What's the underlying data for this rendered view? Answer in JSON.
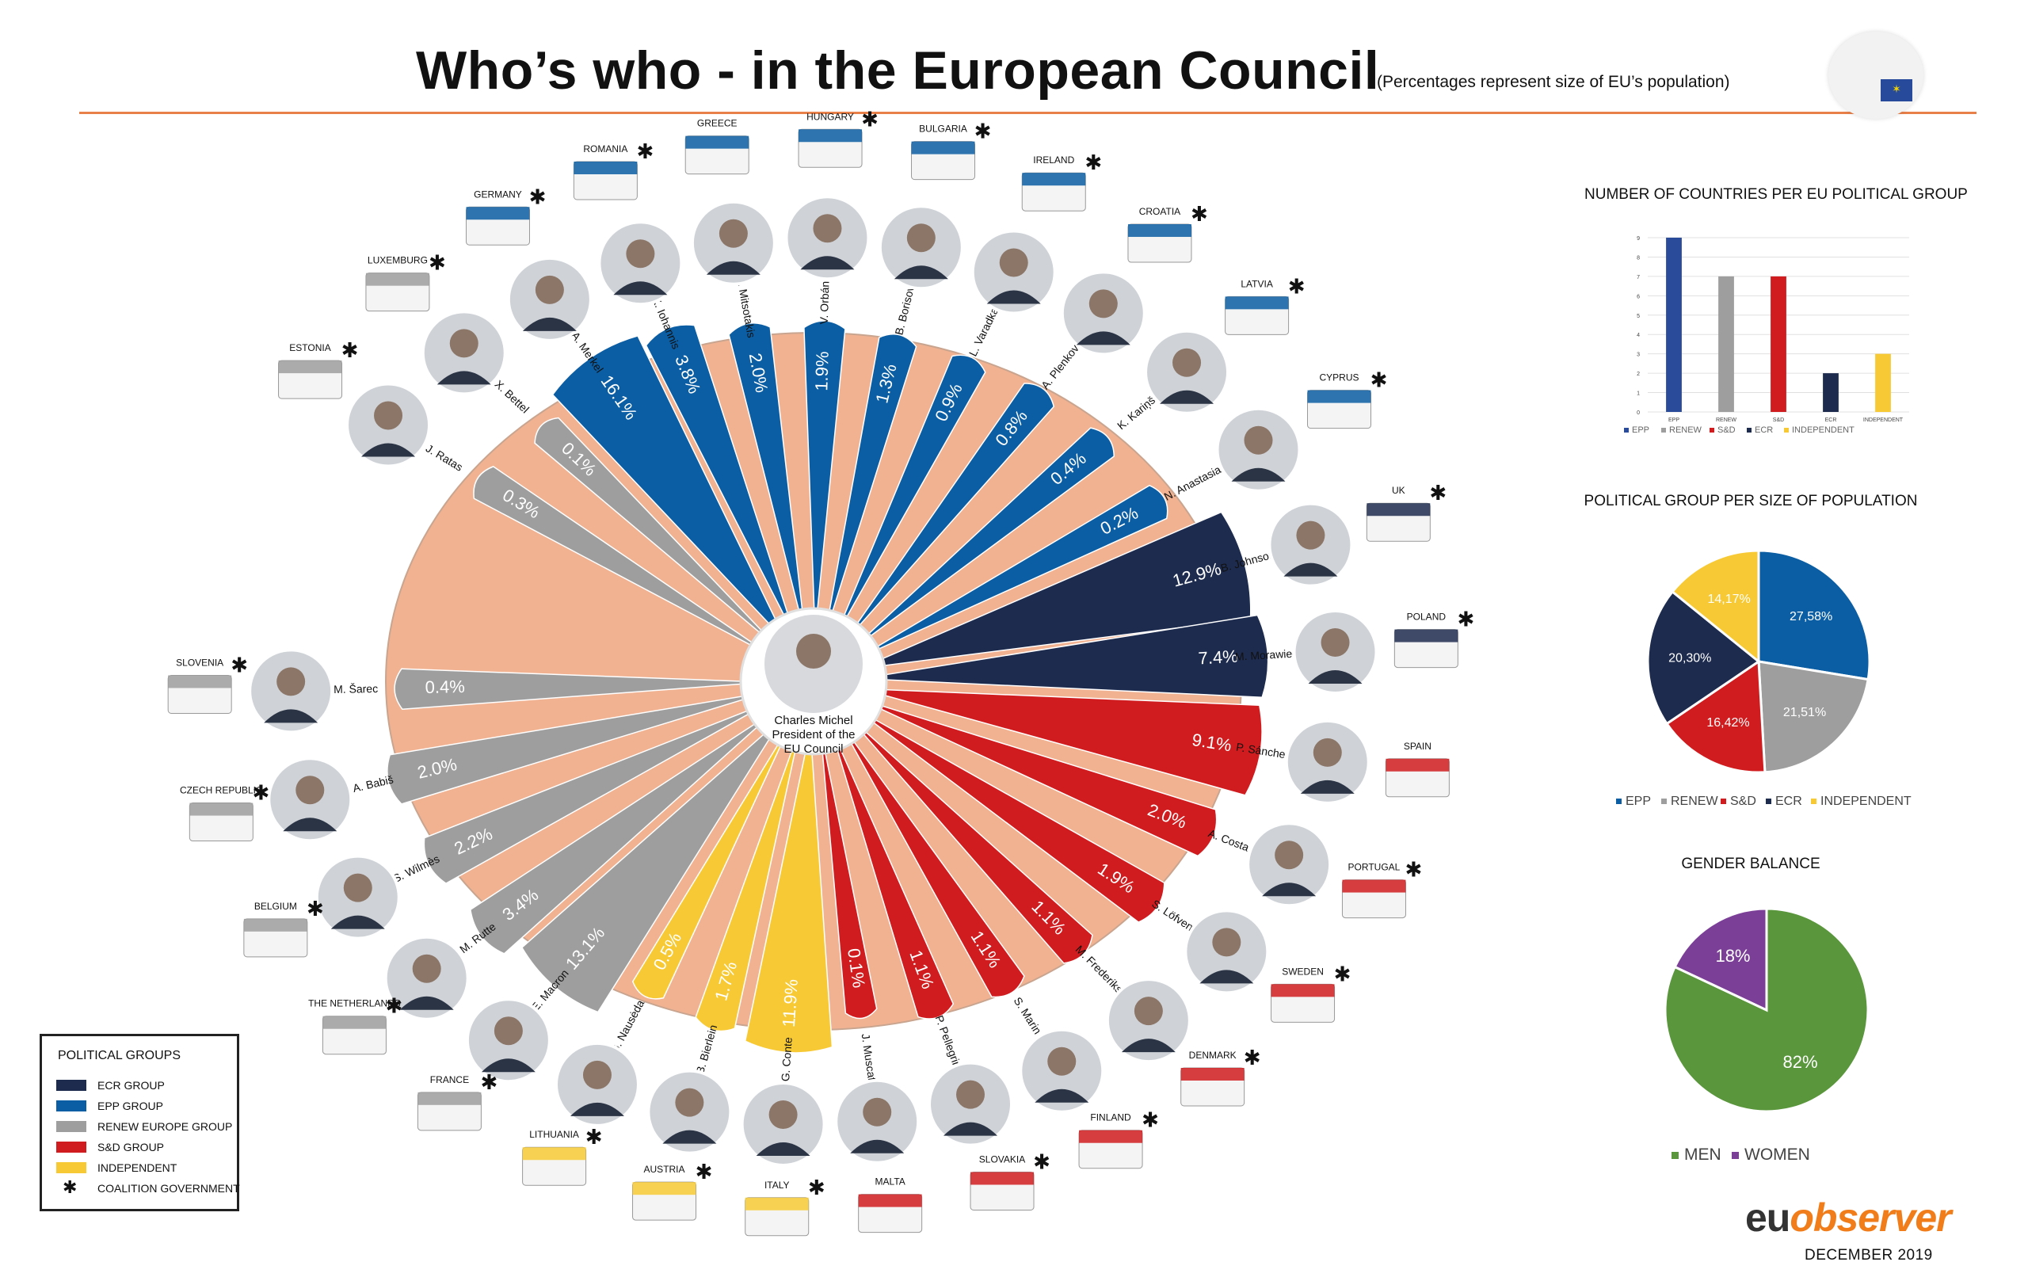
{
  "header": {
    "title": "Who’s who - in the European Council",
    "subtitle": "(Percentages represent size of EU’s population)"
  },
  "center": {
    "line1": "Charles Michel",
    "line2": "President of the",
    "line3": "EU Council"
  },
  "colors": {
    "ECR": "#1d2b4f",
    "EPP": "#0b5ea3",
    "RENEW": "#9e9e9e",
    "SD": "#d01c1f",
    "IND": "#f7ca35",
    "wheel": "#f1b292",
    "accent": "#e8804a"
  },
  "chart_data": [
    {
      "type": "bar",
      "subtype": "radial",
      "title": "Who’s who - in the European Council",
      "subtitle": "(Percentages represent size of EU’s population)",
      "series": [
        {
          "country": "ESTONIA",
          "leader": "J. Ratas",
          "group": "RENEW",
          "value": 0.3,
          "label": "0.3%",
          "coalition": true,
          "flag": "estonia-flag"
        },
        {
          "country": "LUXEMBURG",
          "leader": "X. Bettel",
          "group": "RENEW",
          "value": 0.1,
          "label": "0.1%",
          "coalition": true,
          "flag": "luxembourg-flag"
        },
        {
          "country": "GERMANY",
          "leader": "A. Merkel",
          "group": "EPP",
          "value": 16.1,
          "label": "16.1%",
          "coalition": true,
          "flag": "germany-flag"
        },
        {
          "country": "ROMANIA",
          "leader": "K. Iohannis",
          "group": "EPP",
          "value": 3.8,
          "label": "3.8%",
          "coalition": true,
          "flag": "romania-flag"
        },
        {
          "country": "GREECE",
          "leader": "K. Mitsotakis",
          "group": "EPP",
          "value": 2.0,
          "label": "2.0%",
          "coalition": false,
          "flag": "greece-flag"
        },
        {
          "country": "HUNGARY",
          "leader": "V. Orbán",
          "group": "EPP",
          "value": 1.9,
          "label": "1.9%",
          "coalition": true,
          "flag": "hungary-flag"
        },
        {
          "country": "BULGARIA",
          "leader": "B. Borisov",
          "group": "EPP",
          "value": 1.3,
          "label": "1.3%",
          "coalition": true,
          "flag": "bulgaria-flag"
        },
        {
          "country": "IRELAND",
          "leader": "L. Varadkar",
          "group": "EPP",
          "value": 0.9,
          "label": "0.9%",
          "coalition": true,
          "flag": "ireland-flag"
        },
        {
          "country": "CROATIA",
          "leader": "A. Plenković",
          "group": "EPP",
          "value": 0.8,
          "label": "0.8%",
          "coalition": true,
          "flag": "croatia-flag"
        },
        {
          "country": "LATVIA",
          "leader": "K. Kariņš",
          "group": "EPP",
          "value": 0.4,
          "label": "0.4%",
          "coalition": true,
          "flag": "latvia-flag"
        },
        {
          "country": "CYPRUS",
          "leader": "N. Anastasiades",
          "group": "EPP",
          "value": 0.2,
          "label": "0.2%",
          "coalition": true,
          "flag": "cyprus-flag"
        },
        {
          "country": "UK",
          "leader": "B. Johnson",
          "group": "ECR",
          "value": 12.9,
          "label": "12.9%",
          "coalition": true,
          "flag": "uk-flag"
        },
        {
          "country": "POLAND",
          "leader": "M. Morawiecki",
          "group": "ECR",
          "value": 7.4,
          "label": "7.4%",
          "coalition": true,
          "flag": "poland-flag"
        },
        {
          "country": "SPAIN",
          "leader": "P. Sánchez",
          "group": "SD",
          "value": 9.1,
          "label": "9.1%",
          "coalition": false,
          "flag": "spain-flag"
        },
        {
          "country": "PORTUGAL",
          "leader": "A. Costa",
          "group": "SD",
          "value": 2.0,
          "label": "2.0%",
          "coalition": true,
          "flag": "portugal-flag"
        },
        {
          "country": "SWEDEN",
          "leader": "S. Löfven",
          "group": "SD",
          "value": 1.9,
          "label": "1.9%",
          "coalition": true,
          "flag": "sweden-flag"
        },
        {
          "country": "DENMARK",
          "leader": "M. Frederiksen",
          "group": "SD",
          "value": 1.1,
          "label": "1.1%",
          "coalition": true,
          "flag": "denmark-flag"
        },
        {
          "country": "FINLAND",
          "leader": "S. Marin",
          "group": "SD",
          "value": 1.1,
          "label": "1.1%",
          "coalition": true,
          "flag": "finland-flag"
        },
        {
          "country": "SLOVAKIA",
          "leader": "P. Pellegrini",
          "group": "SD",
          "value": 1.1,
          "label": "1.1%",
          "coalition": true,
          "flag": "slovakia-flag"
        },
        {
          "country": "MALTA",
          "leader": "J. Muscat",
          "group": "SD",
          "value": 0.1,
          "label": "0.1%",
          "coalition": false,
          "flag": "malta-flag"
        },
        {
          "country": "ITALY",
          "leader": "G. Conte",
          "group": "IND",
          "value": 11.9,
          "label": "11.9%",
          "coalition": true,
          "flag": "italy-flag"
        },
        {
          "country": "AUSTRIA",
          "leader": "B. Bierlein",
          "group": "IND",
          "value": 1.7,
          "label": "1.7%",
          "coalition": true,
          "flag": "austria-flag"
        },
        {
          "country": "LITHUANIA",
          "leader": "G. Nausėda",
          "group": "IND",
          "value": 0.5,
          "label": "0.5%",
          "coalition": true,
          "flag": "lithuania-flag"
        },
        {
          "country": "FRANCE",
          "leader": "E. Macron",
          "group": "RENEW",
          "value": 13.1,
          "label": "13.1%",
          "coalition": true,
          "flag": "france-flag"
        },
        {
          "country": "THE NETHERLANDS",
          "leader": "M. Rutte",
          "group": "RENEW",
          "value": 3.4,
          "label": "3.4%",
          "coalition": true,
          "flag": "netherlands-flag"
        },
        {
          "country": "BELGIUM",
          "leader": "S. Wilmès",
          "group": "RENEW",
          "value": 2.2,
          "label": "2.2%",
          "coalition": true,
          "flag": "belgium-flag"
        },
        {
          "country": "CZECH REPUBLIC",
          "leader": "A. Babiš",
          "group": "RENEW",
          "value": 2.0,
          "label": "2.0%",
          "coalition": true,
          "flag": "czech-flag"
        },
        {
          "country": "SLOVENIA",
          "leader": "M. Šarec",
          "group": "RENEW",
          "value": 0.4,
          "label": "0.4%",
          "coalition": true,
          "flag": "slovenia-flag"
        }
      ]
    },
    {
      "type": "bar",
      "title": "NUMBER OF COUNTRIES PER EU POLITICAL GROUP",
      "categories": [
        "EPP",
        "RENEW",
        "S&D",
        "ECR",
        "INDEPENDENT"
      ],
      "values": [
        9,
        7,
        7,
        2,
        3
      ],
      "ylim": [
        0,
        9
      ],
      "yticks": [
        "0",
        "1",
        "2",
        "3",
        "4",
        "5",
        "6",
        "7",
        "8",
        "9"
      ],
      "legend": [
        "EPP",
        "RENEW",
        "S&D",
        "ECR",
        "INDEPENDENT"
      ],
      "legend_position": "bottom",
      "grid": true
    },
    {
      "type": "pie",
      "title": "POLITICAL GROUP PER SIZE OF POPULATION",
      "categories": [
        "EPP",
        "RENEW",
        "S&D",
        "ECR",
        "INDEPENDENT"
      ],
      "values": [
        27.58,
        21.51,
        16.42,
        20.3,
        14.17
      ],
      "labels": [
        "27,58%",
        "21,51%",
        "16,42%",
        "20,30%",
        "14,17%"
      ],
      "legend": [
        "EPP",
        "RENEW",
        "S&D",
        "ECR",
        "INDEPENDENT"
      ],
      "legend_position": "bottom"
    },
    {
      "type": "pie",
      "title": "GENDER BALANCE",
      "categories": [
        "MEN",
        "WOMEN"
      ],
      "values": [
        82,
        18
      ],
      "labels": [
        "82%",
        "18%"
      ],
      "colors": [
        "#5a963c",
        "#7b3f98"
      ],
      "legend": [
        "MEN",
        "WOMEN"
      ],
      "legend_position": "bottom"
    }
  ],
  "legend_box": {
    "title": "POLITICAL GROUPS",
    "items": [
      "ECR GROUP",
      "EPP GROUP",
      "RENEW EUROPE GROUP",
      "S&D GROUP",
      "INDEPENDENT",
      "COALITION GOVERNMENT"
    ]
  },
  "footer": {
    "brand_a": "eu",
    "brand_b": "observer",
    "date": "DECEMBER 2019"
  }
}
